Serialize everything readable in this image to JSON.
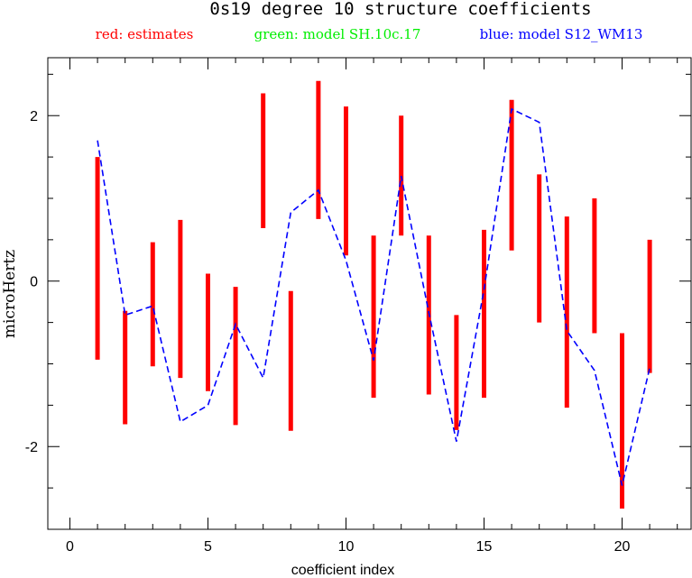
{
  "chart_data": {
    "type": "errorbar-line",
    "title": "0s19 degree 10 structure coefficients",
    "legend": [
      {
        "label": "red: estimates",
        "color": "#ff0000"
      },
      {
        "label": "green: model SH.10c.17",
        "color": "#00ee00"
      },
      {
        "label": "blue: model S12_WM13",
        "color": "#0000ff"
      }
    ],
    "xlabel": "coefficient index",
    "ylabel": "microHertz",
    "xlim": [
      -0.8,
      22.5
    ],
    "ylim": [
      -3.0,
      2.7
    ],
    "x_major_ticks": [
      0,
      5,
      10,
      15,
      20
    ],
    "x_minor_step": 1,
    "y_major_ticks": [
      -2,
      0,
      2
    ],
    "y_minor_step": 0.5,
    "series": [
      {
        "name": "estimates",
        "kind": "errorbar",
        "color": "#ff0000",
        "x": [
          1,
          2,
          3,
          4,
          5,
          6,
          7,
          8,
          9,
          10,
          11,
          12,
          13,
          14,
          15,
          16,
          17,
          18,
          19,
          20,
          21
        ],
        "low": [
          -0.95,
          -1.73,
          -1.03,
          -1.17,
          -1.33,
          -1.74,
          0.64,
          -1.81,
          0.75,
          0.31,
          -1.41,
          0.55,
          -1.37,
          -1.8,
          -1.41,
          0.37,
          -0.5,
          -1.53,
          -0.63,
          -2.75,
          -1.11
        ],
        "high": [
          1.5,
          -0.36,
          0.47,
          0.74,
          0.09,
          -0.07,
          2.27,
          -0.12,
          2.42,
          2.11,
          0.55,
          2.0,
          0.55,
          -0.41,
          0.62,
          2.19,
          1.29,
          0.78,
          1.0,
          -0.63,
          0.5
        ]
      },
      {
        "name": "model S12_WM13",
        "kind": "line",
        "color": "#0000ff",
        "x": [
          1,
          2,
          3,
          4,
          5,
          6,
          7,
          8,
          9,
          10,
          11,
          12,
          13,
          14,
          15,
          16,
          17,
          18,
          19,
          20,
          21
        ],
        "y": [
          1.7,
          -0.41,
          -0.3,
          -1.7,
          -1.5,
          -0.52,
          -1.17,
          0.83,
          1.1,
          0.25,
          -0.96,
          1.27,
          -0.38,
          -1.94,
          -0.1,
          2.08,
          1.92,
          -0.6,
          -1.08,
          -2.47,
          -1.05
        ]
      }
    ]
  }
}
